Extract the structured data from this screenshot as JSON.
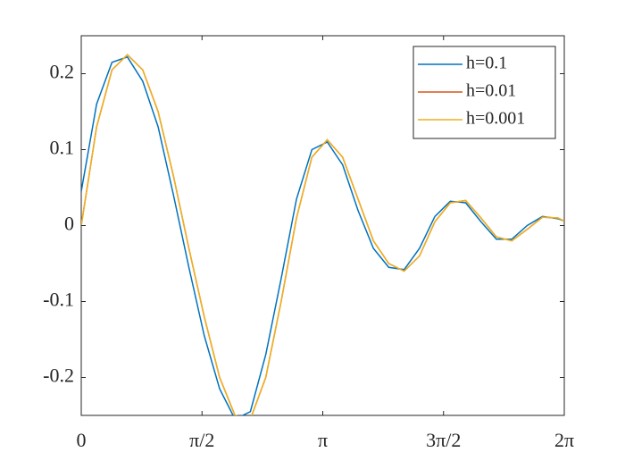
{
  "chart_data": {
    "type": "line",
    "x": [
      0,
      0.2,
      0.4,
      0.6,
      0.8,
      1.0,
      1.2,
      1.4,
      1.6,
      1.8,
      2.0,
      2.2,
      2.4,
      2.6,
      2.8,
      3.0,
      3.2,
      3.4,
      3.6,
      3.8,
      4.0,
      4.2,
      4.4,
      4.6,
      4.8,
      5.0,
      5.2,
      5.4,
      5.6,
      5.8,
      6.0,
      6.2,
      6.2832
    ],
    "series": [
      {
        "name": "h=0.1",
        "color": "#0072bd",
        "values": [
          0.045,
          0.16,
          0.215,
          0.222,
          0.19,
          0.13,
          0.04,
          -0.055,
          -0.145,
          -0.215,
          -0.255,
          -0.245,
          -0.17,
          -0.07,
          0.035,
          0.1,
          0.11,
          0.08,
          0.02,
          -0.03,
          -0.055,
          -0.058,
          -0.03,
          0.012,
          0.032,
          0.03,
          0.005,
          -0.018,
          -0.018,
          0,
          0.012,
          0.009,
          0.006
        ]
      },
      {
        "name": "h=0.01",
        "color": "#d95319",
        "values": [
          0,
          0.13,
          0.205,
          0.225,
          0.205,
          0.15,
          0.065,
          -0.03,
          -0.12,
          -0.2,
          -0.25,
          -0.255,
          -0.2,
          -0.1,
          0.01,
          0.09,
          0.113,
          0.09,
          0.035,
          -0.02,
          -0.05,
          -0.06,
          -0.04,
          0.005,
          0.03,
          0.033,
          0.01,
          -0.015,
          -0.02,
          -0.005,
          0.011,
          0.01,
          0.006
        ]
      },
      {
        "name": "h=0.001",
        "color": "#edb120",
        "values": [
          0,
          0.13,
          0.205,
          0.225,
          0.205,
          0.15,
          0.065,
          -0.03,
          -0.12,
          -0.2,
          -0.25,
          -0.255,
          -0.2,
          -0.1,
          0.01,
          0.09,
          0.113,
          0.09,
          0.035,
          -0.02,
          -0.05,
          -0.06,
          -0.04,
          0.005,
          0.03,
          0.033,
          0.01,
          -0.015,
          -0.02,
          -0.005,
          0.011,
          0.01,
          0.006
        ]
      }
    ],
    "xlim": [
      0,
      6.2832
    ],
    "xticks": [
      0,
      {
        "value": 1.5708,
        "label": "π/2"
      },
      {
        "value": 3.1416,
        "label": "π"
      },
      {
        "value": 4.7124,
        "label": "3π/2"
      },
      {
        "value": 6.2832,
        "label": "2π"
      }
    ],
    "ylim": [
      -0.25,
      0.25
    ],
    "yticks": [
      -0.2,
      -0.1,
      0,
      0.1,
      0.2
    ],
    "legend": "top-right"
  }
}
